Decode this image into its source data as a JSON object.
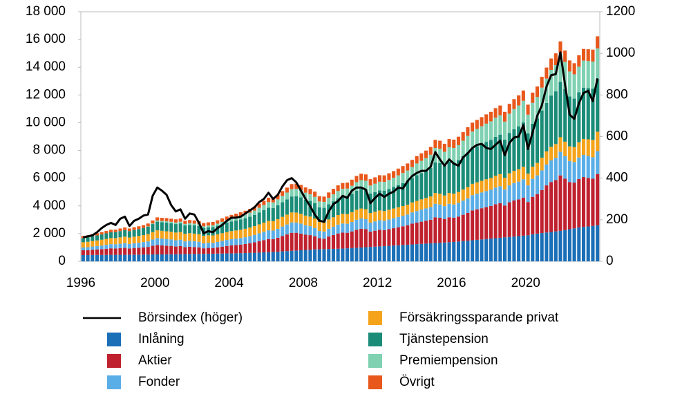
{
  "chart_data": {
    "type": "bar",
    "categories": [
      "1996",
      null,
      null,
      null,
      null,
      null,
      null,
      null,
      null,
      null,
      null,
      null,
      null,
      null,
      null,
      null,
      "2000",
      null,
      null,
      null,
      null,
      null,
      null,
      null,
      null,
      null,
      null,
      null,
      null,
      null,
      null,
      null,
      "2004",
      null,
      null,
      null,
      null,
      null,
      null,
      null,
      null,
      null,
      null,
      null,
      null,
      null,
      null,
      null,
      "2008",
      null,
      null,
      null,
      null,
      null,
      null,
      null,
      null,
      null,
      null,
      null,
      null,
      null,
      null,
      null,
      "2012",
      null,
      null,
      null,
      null,
      null,
      null,
      null,
      null,
      null,
      null,
      null,
      null,
      null,
      null,
      null,
      "2016",
      null,
      null,
      null,
      null,
      null,
      null,
      null,
      null,
      null,
      null,
      null,
      null,
      null,
      null,
      null,
      "2020",
      null,
      null,
      null,
      null,
      null,
      null,
      null,
      null,
      null,
      null,
      null,
      null,
      null,
      null,
      null
    ],
    "ylim": [
      0,
      18000
    ],
    "yticks": [
      {
        "value": 0,
        "label": "0"
      },
      {
        "value": 2000,
        "label": "2 000"
      },
      {
        "value": 4000,
        "label": "4 000"
      },
      {
        "value": 6000,
        "label": "6 000"
      },
      {
        "value": 8000,
        "label": "8 000"
      },
      {
        "value": 10000,
        "label": "10 000"
      },
      {
        "value": 12000,
        "label": "12 000"
      },
      {
        "value": 14000,
        "label": "14 000"
      },
      {
        "value": 16000,
        "label": "16 000"
      },
      {
        "value": 18000,
        "label": "18 000"
      }
    ],
    "y2lim": [
      0,
      1200
    ],
    "y2ticks": [
      0,
      200,
      400,
      600,
      800,
      1000,
      1200
    ],
    "grid": false,
    "series": [
      {
        "name": "Börsindex (höger)",
        "type": "line",
        "axis": "y2",
        "color": "#000000",
        "values": [
          115,
          120,
          125,
          140,
          160,
          175,
          185,
          175,
          205,
          215,
          170,
          195,
          205,
          220,
          225,
          315,
          355,
          340,
          320,
          270,
          240,
          250,
          205,
          230,
          225,
          185,
          135,
          145,
          140,
          160,
          175,
          195,
          210,
          210,
          215,
          230,
          245,
          260,
          285,
          300,
          330,
          300,
          320,
          360,
          390,
          400,
          380,
          340,
          300,
          265,
          225,
          195,
          190,
          240,
          275,
          290,
          315,
          305,
          340,
          355,
          355,
          345,
          280,
          305,
          325,
          310,
          325,
          335,
          355,
          350,
          385,
          410,
          425,
          435,
          435,
          455,
          525,
          490,
          460,
          490,
          470,
          460,
          500,
          520,
          545,
          560,
          565,
          545,
          540,
          560,
          580,
          510,
          570,
          595,
          600,
          655,
          540,
          620,
          700,
          750,
          840,
          895,
          900,
          1005,
          850,
          705,
          685,
          760,
          810,
          820,
          770,
          880
        ]
      },
      {
        "name": "Inlåning",
        "color": "#1a6fb7",
        "values": [
          450,
          450,
          460,
          460,
          460,
          460,
          470,
          470,
          470,
          470,
          480,
          480,
          480,
          490,
          490,
          500,
          500,
          500,
          510,
          510,
          510,
          520,
          520,
          530,
          530,
          540,
          540,
          550,
          550,
          560,
          560,
          570,
          570,
          580,
          590,
          600,
          610,
          620,
          630,
          650,
          660,
          680,
          700,
          720,
          740,
          760,
          780,
          800,
          820,
          840,
          860,
          870,
          880,
          890,
          900,
          910,
          920,
          940,
          960,
          980,
          1000,
          1020,
          1040,
          1060,
          1080,
          1100,
          1120,
          1140,
          1160,
          1180,
          1200,
          1220,
          1240,
          1260,
          1280,
          1300,
          1320,
          1340,
          1360,
          1380,
          1400,
          1430,
          1460,
          1490,
          1520,
          1550,
          1580,
          1610,
          1640,
          1670,
          1700,
          1730,
          1760,
          1790,
          1820,
          1850,
          1880,
          1950,
          2000,
          2040,
          2080,
          2120,
          2160,
          2200,
          2260,
          2320,
          2380,
          2440,
          2480,
          2520,
          2560,
          2600
        ]
      },
      {
        "name": "Aktier",
        "color": "#c0212f",
        "values": [
          350,
          360,
          380,
          400,
          420,
          450,
          470,
          460,
          480,
          500,
          450,
          480,
          500,
          520,
          550,
          620,
          680,
          650,
          620,
          600,
          560,
          580,
          500,
          520,
          500,
          470,
          400,
          420,
          410,
          450,
          500,
          540,
          580,
          600,
          620,
          650,
          700,
          750,
          820,
          880,
          950,
          920,
          1000,
          1100,
          1200,
          1300,
          1280,
          1200,
          1100,
          1050,
          950,
          800,
          750,
          900,
          1000,
          1100,
          1150,
          1120,
          1200,
          1300,
          1350,
          1300,
          1100,
          1150,
          1200,
          1150,
          1200,
          1250,
          1300,
          1350,
          1400,
          1500,
          1550,
          1600,
          1650,
          1700,
          1850,
          1800,
          1700,
          1800,
          1750,
          1800,
          1900,
          2000,
          2150,
          2200,
          2250,
          2300,
          2350,
          2450,
          2500,
          2300,
          2500,
          2600,
          2650,
          2750,
          2400,
          2700,
          2850,
          3100,
          3400,
          3600,
          3700,
          4000,
          3700,
          3400,
          3300,
          3500,
          3600,
          3500,
          3400,
          3700
        ]
      },
      {
        "name": "Fonder",
        "color": "#5aaee8",
        "values": [
          200,
          210,
          230,
          240,
          260,
          280,
          300,
          300,
          320,
          340,
          320,
          340,
          360,
          380,
          400,
          450,
          500,
          490,
          480,
          470,
          450,
          460,
          420,
          430,
          420,
          400,
          360,
          370,
          370,
          390,
          410,
          430,
          450,
          460,
          470,
          490,
          510,
          540,
          570,
          600,
          630,
          620,
          650,
          690,
          720,
          750,
          740,
          720,
          680,
          650,
          600,
          520,
          520,
          560,
          600,
          640,
          660,
          650,
          680,
          720,
          740,
          720,
          650,
          670,
          690,
          680,
          700,
          720,
          740,
          760,
          780,
          810,
          840,
          870,
          890,
          920,
          980,
          960,
          920,
          970,
          950,
          980,
          1020,
          1060,
          1100,
          1120,
          1140,
          1160,
          1170,
          1200,
          1220,
          1150,
          1220,
          1260,
          1280,
          1320,
          1200,
          1300,
          1350,
          1420,
          1500,
          1560,
          1600,
          1700,
          1620,
          1520,
          1480,
          1550,
          1600,
          1580,
          1550,
          1650
        ]
      },
      {
        "name": "Försäkringssparande privat",
        "color": "#f5a31a",
        "values": [
          380,
          390,
          400,
          410,
          420,
          430,
          440,
          450,
          460,
          470,
          470,
          480,
          490,
          500,
          520,
          540,
          560,
          560,
          560,
          560,
          560,
          560,
          550,
          550,
          550,
          550,
          540,
          540,
          540,
          550,
          560,
          570,
          580,
          590,
          600,
          610,
          620,
          630,
          650,
          660,
          680,
          680,
          690,
          700,
          710,
          720,
          720,
          710,
          700,
          690,
          680,
          660,
          660,
          670,
          680,
          690,
          700,
          700,
          710,
          720,
          720,
          720,
          700,
          700,
          700,
          700,
          700,
          700,
          700,
          700,
          710,
          720,
          730,
          740,
          750,
          760,
          780,
          780,
          770,
          780,
          780,
          790,
          800,
          810,
          820,
          830,
          840,
          850,
          850,
          860,
          870,
          850,
          870,
          880,
          890,
          900,
          850,
          880,
          900,
          920,
          950,
          980,
          1000,
          1050,
          1050,
          1050,
          1080,
          1100,
          1150,
          1200,
          1250,
          1400
        ]
      },
      {
        "name": "Tjänstepension",
        "color": "#1a8c78",
        "values": [
          300,
          320,
          340,
          360,
          380,
          400,
          420,
          430,
          450,
          470,
          460,
          480,
          500,
          520,
          540,
          580,
          620,
          620,
          620,
          610,
          610,
          620,
          600,
          600,
          600,
          600,
          580,
          580,
          600,
          620,
          650,
          680,
          700,
          720,
          740,
          760,
          780,
          810,
          850,
          900,
          950,
          950,
          1000,
          1050,
          1100,
          1150,
          1180,
          1180,
          1150,
          1130,
          1100,
          1050,
          1050,
          1100,
          1150,
          1200,
          1250,
          1280,
          1320,
          1380,
          1420,
          1430,
          1400,
          1420,
          1450,
          1470,
          1500,
          1550,
          1600,
          1650,
          1700,
          1750,
          1850,
          1900,
          1950,
          2050,
          2200,
          2200,
          2150,
          2250,
          2250,
          2300,
          2400,
          2500,
          2550,
          2600,
          2650,
          2700,
          2750,
          2800,
          2850,
          2750,
          2900,
          3000,
          3100,
          3200,
          2900,
          3100,
          3200,
          3400,
          3500,
          3700,
          3800,
          4000,
          3800,
          3600,
          3500,
          3600,
          3700,
          3700,
          3700,
          3800
        ]
      },
      {
        "name": "Premiempension",
        "color": "#7fd1b2",
        "values": [
          0,
          0,
          0,
          0,
          0,
          0,
          0,
          0,
          0,
          0,
          0,
          0,
          0,
          0,
          20,
          40,
          80,
          90,
          100,
          100,
          110,
          120,
          110,
          120,
          120,
          120,
          110,
          120,
          130,
          150,
          170,
          190,
          210,
          230,
          250,
          270,
          290,
          310,
          340,
          370,
          400,
          400,
          430,
          460,
          490,
          520,
          530,
          520,
          500,
          480,
          460,
          420,
          430,
          460,
          500,
          530,
          550,
          560,
          580,
          610,
          630,
          620,
          580,
          600,
          620,
          630,
          650,
          670,
          700,
          730,
          760,
          800,
          850,
          880,
          920,
          960,
          1050,
          1040,
          1000,
          1050,
          1050,
          1080,
          1120,
          1180,
          1220,
          1250,
          1280,
          1310,
          1340,
          1380,
          1400,
          1300,
          1400,
          1450,
          1500,
          1560,
          1350,
          1500,
          1550,
          1650,
          1750,
          1850,
          1900,
          2050,
          1950,
          1800,
          1750,
          1850,
          1950,
          1950,
          1950,
          2200
        ]
      },
      {
        "name": "Övrigt",
        "color": "#e8581c",
        "values": [
          150,
          150,
          160,
          160,
          170,
          170,
          180,
          180,
          190,
          190,
          190,
          200,
          200,
          200,
          210,
          220,
          230,
          230,
          230,
          230,
          230,
          230,
          230,
          230,
          230,
          230,
          230,
          230,
          240,
          240,
          250,
          250,
          260,
          260,
          270,
          270,
          280,
          290,
          300,
          310,
          320,
          330,
          340,
          350,
          360,
          370,
          380,
          380,
          380,
          380,
          380,
          380,
          380,
          390,
          400,
          410,
          420,
          430,
          440,
          450,
          460,
          460,
          460,
          460,
          470,
          470,
          480,
          480,
          490,
          500,
          510,
          520,
          530,
          540,
          550,
          560,
          580,
          580,
          580,
          590,
          600,
          610,
          620,
          630,
          640,
          650,
          660,
          670,
          680,
          690,
          700,
          700,
          710,
          720,
          730,
          740,
          720,
          740,
          760,
          780,
          800,
          820,
          840,
          860,
          820,
          800,
          800,
          820,
          840,
          850,
          860,
          880
        ]
      }
    ]
  }
}
